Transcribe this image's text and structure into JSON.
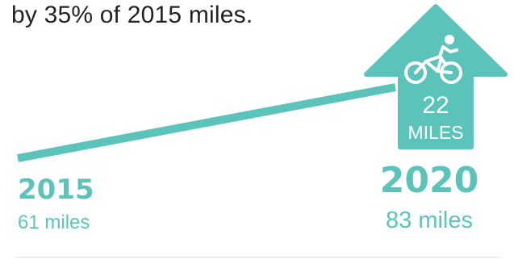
{
  "caption": "by 35% of 2015 miles.",
  "colors": {
    "accent": "#5cc3bb",
    "text": "#222222",
    "arrow_text": "#ffffff",
    "divider": "#e3e3e3"
  },
  "arrow": {
    "icon": "bicycle-icon",
    "value": "22",
    "unit": "MILES"
  },
  "chart_data": {
    "type": "line",
    "title": "",
    "xlabel": "",
    "ylabel": "",
    "series": [
      {
        "values": [
          61,
          83
        ]
      }
    ],
    "x": [
      2015,
      2020
    ],
    "ylim": [
      50,
      95
    ],
    "grid": false,
    "points": [
      {
        "year": "2015",
        "miles": 61,
        "miles_label": "61 miles"
      },
      {
        "year": "2020",
        "miles": 83,
        "miles_label": "83 miles"
      }
    ]
  }
}
